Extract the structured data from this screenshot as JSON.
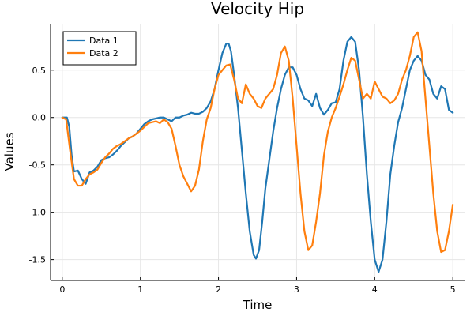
{
  "chart_data": {
    "type": "line",
    "title": "Velocity Hip",
    "xlabel": "Time",
    "ylabel": "Values",
    "xlim": [
      -0.15,
      5.15
    ],
    "ylim": [
      -1.72,
      0.99
    ],
    "xticks": [
      0,
      1,
      2,
      3,
      4,
      5
    ],
    "xtick_labels": [
      "0",
      "1",
      "2",
      "3",
      "4",
      "5"
    ],
    "yticks": [
      -1.5,
      -1.0,
      -0.5,
      0.0,
      0.5
    ],
    "ytick_labels": [
      "-1.5",
      "-1.0",
      "-0.5",
      "0.0",
      "0.5"
    ],
    "grid": true,
    "legend_position": "top-left",
    "series": [
      {
        "name": "Data 1",
        "color": "#1f77b4",
        "x": [
          0,
          0.06,
          0.09,
          0.12,
          0.15,
          0.2,
          0.25,
          0.3,
          0.35,
          0.4,
          0.45,
          0.5,
          0.55,
          0.6,
          0.65,
          0.7,
          0.75,
          0.8,
          0.85,
          0.9,
          0.95,
          1.0,
          1.05,
          1.1,
          1.15,
          1.2,
          1.25,
          1.3,
          1.35,
          1.4,
          1.45,
          1.5,
          1.55,
          1.6,
          1.65,
          1.7,
          1.75,
          1.8,
          1.85,
          1.9,
          1.95,
          2.0,
          2.05,
          2.1,
          2.13,
          2.16,
          2.2,
          2.25,
          2.3,
          2.35,
          2.4,
          2.45,
          2.48,
          2.52,
          2.56,
          2.6,
          2.65,
          2.7,
          2.75,
          2.8,
          2.85,
          2.9,
          2.95,
          3.0,
          3.05,
          3.1,
          3.15,
          3.2,
          3.25,
          3.3,
          3.35,
          3.4,
          3.45,
          3.5,
          3.55,
          3.6,
          3.65,
          3.7,
          3.75,
          3.8,
          3.85,
          3.9,
          3.95,
          4.0,
          4.05,
          4.1,
          4.15,
          4.2,
          4.25,
          4.3,
          4.35,
          4.4,
          4.45,
          4.5,
          4.55,
          4.6,
          4.65,
          4.7,
          4.75,
          4.8,
          4.85,
          4.9,
          4.95,
          5.0
        ],
        "y": [
          0,
          0,
          -0.1,
          -0.4,
          -0.57,
          -0.56,
          -0.65,
          -0.7,
          -0.58,
          -0.56,
          -0.52,
          -0.45,
          -0.43,
          -0.42,
          -0.39,
          -0.35,
          -0.3,
          -0.26,
          -0.22,
          -0.2,
          -0.17,
          -0.12,
          -0.07,
          -0.04,
          -0.02,
          -0.01,
          0,
          0,
          -0.02,
          -0.04,
          0,
          0,
          0.02,
          0.03,
          0.05,
          0.04,
          0.04,
          0.06,
          0.1,
          0.17,
          0.3,
          0.5,
          0.68,
          0.78,
          0.78,
          0.7,
          0.45,
          0.1,
          -0.35,
          -0.8,
          -1.2,
          -1.45,
          -1.49,
          -1.4,
          -1.1,
          -0.75,
          -0.45,
          -0.15,
          0.1,
          0.3,
          0.45,
          0.53,
          0.53,
          0.45,
          0.3,
          0.2,
          0.18,
          0.12,
          0.25,
          0.1,
          0.03,
          0.08,
          0.15,
          0.16,
          0.3,
          0.6,
          0.8,
          0.85,
          0.8,
          0.5,
          0.0,
          -0.6,
          -1.1,
          -1.5,
          -1.63,
          -1.5,
          -1.1,
          -0.6,
          -0.3,
          -0.05,
          0.1,
          0.3,
          0.5,
          0.6,
          0.65,
          0.6,
          0.45,
          0.4,
          0.25,
          0.2,
          0.33,
          0.3,
          0.08,
          0.05
        ]
      },
      {
        "name": "Data 2",
        "color": "#ff7f0e",
        "x": [
          0,
          0.05,
          0.1,
          0.15,
          0.2,
          0.25,
          0.3,
          0.35,
          0.4,
          0.45,
          0.5,
          0.55,
          0.6,
          0.65,
          0.7,
          0.75,
          0.8,
          0.85,
          0.9,
          0.95,
          1.0,
          1.05,
          1.1,
          1.15,
          1.2,
          1.25,
          1.3,
          1.35,
          1.4,
          1.45,
          1.5,
          1.55,
          1.6,
          1.65,
          1.7,
          1.75,
          1.8,
          1.85,
          1.9,
          1.95,
          2.0,
          2.05,
          2.1,
          2.15,
          2.2,
          2.25,
          2.3,
          2.35,
          2.4,
          2.45,
          2.5,
          2.55,
          2.6,
          2.65,
          2.7,
          2.75,
          2.8,
          2.85,
          2.9,
          2.95,
          3.0,
          3.05,
          3.1,
          3.15,
          3.2,
          3.25,
          3.3,
          3.35,
          3.4,
          3.45,
          3.5,
          3.55,
          3.6,
          3.65,
          3.7,
          3.75,
          3.8,
          3.85,
          3.9,
          3.95,
          4.0,
          4.05,
          4.1,
          4.15,
          4.2,
          4.25,
          4.3,
          4.35,
          4.4,
          4.45,
          4.5,
          4.55,
          4.6,
          4.65,
          4.7,
          4.75,
          4.8,
          4.85,
          4.9,
          4.95,
          5.0
        ],
        "y": [
          0,
          -0.02,
          -0.35,
          -0.65,
          -0.72,
          -0.72,
          -0.65,
          -0.6,
          -0.58,
          -0.55,
          -0.48,
          -0.42,
          -0.38,
          -0.33,
          -0.3,
          -0.28,
          -0.25,
          -0.22,
          -0.2,
          -0.17,
          -0.14,
          -0.1,
          -0.06,
          -0.05,
          -0.04,
          -0.06,
          -0.02,
          -0.05,
          -0.12,
          -0.3,
          -0.5,
          -0.62,
          -0.7,
          -0.78,
          -0.72,
          -0.55,
          -0.25,
          -0.02,
          0.1,
          0.3,
          0.45,
          0.5,
          0.55,
          0.56,
          0.4,
          0.2,
          0.15,
          0.35,
          0.25,
          0.2,
          0.12,
          0.1,
          0.2,
          0.25,
          0.3,
          0.45,
          0.68,
          0.75,
          0.6,
          0.2,
          -0.3,
          -0.8,
          -1.2,
          -1.4,
          -1.35,
          -1.1,
          -0.8,
          -0.4,
          -0.15,
          0.0,
          0.1,
          0.22,
          0.35,
          0.5,
          0.63,
          0.6,
          0.4,
          0.2,
          0.25,
          0.2,
          0.38,
          0.3,
          0.22,
          0.2,
          0.15,
          0.18,
          0.25,
          0.4,
          0.5,
          0.65,
          0.85,
          0.9,
          0.7,
          0.2,
          -0.3,
          -0.8,
          -1.2,
          -1.42,
          -1.4,
          -1.2,
          -0.92
        ]
      }
    ]
  }
}
